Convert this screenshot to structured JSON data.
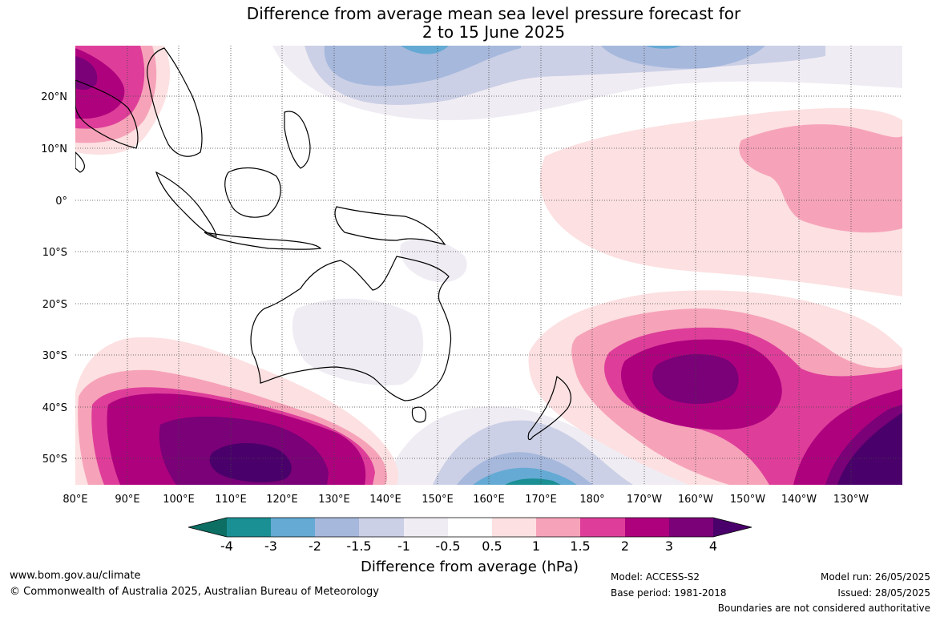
{
  "title": {
    "line1": "Difference from average mean sea level pressure forecast for",
    "line2": "2 to 15 June 2025"
  },
  "map": {
    "lon_labels": [
      "80°E",
      "90°E",
      "100°E",
      "110°E",
      "120°E",
      "130°E",
      "140°E",
      "150°E",
      "160°E",
      "170°E",
      "180°",
      "170°W",
      "160°W",
      "150°W",
      "140°W",
      "130°W"
    ],
    "lat_labels": [
      "20°N",
      "10°N",
      "0°",
      "10°S",
      "20°S",
      "30°S",
      "40°S",
      "50°S"
    ],
    "grid": "dotted"
  },
  "colorbar": {
    "ticks": [
      "-4",
      "-3",
      "-2",
      "-1.5",
      "-1",
      "-0.5",
      "0.5",
      "1",
      "1.5",
      "2",
      "3",
      "4"
    ],
    "colors": [
      "#0d6e63",
      "#1a8f94",
      "#64aad4",
      "#a6b8dc",
      "#cbd0e6",
      "#f0ecf3",
      "#ffffff",
      "#fde0e1",
      "#f6a3b9",
      "#de3e9a",
      "#ae017e",
      "#7a0177",
      "#4a006a"
    ],
    "label": "Difference from average (hPa)"
  },
  "footer": {
    "website": "www.bom.gov.au/climate",
    "copyright": "© Commonwealth of Australia 2025, Australian Bureau of Meteorology",
    "model": "Model: ACCESS-S2",
    "base_period": "Base period: 1981-2018",
    "model_run": "Model run: 26/05/2025",
    "issued": "Issued: 28/05/2025",
    "disclaimer": "Boundaries are not considered authoritative"
  }
}
